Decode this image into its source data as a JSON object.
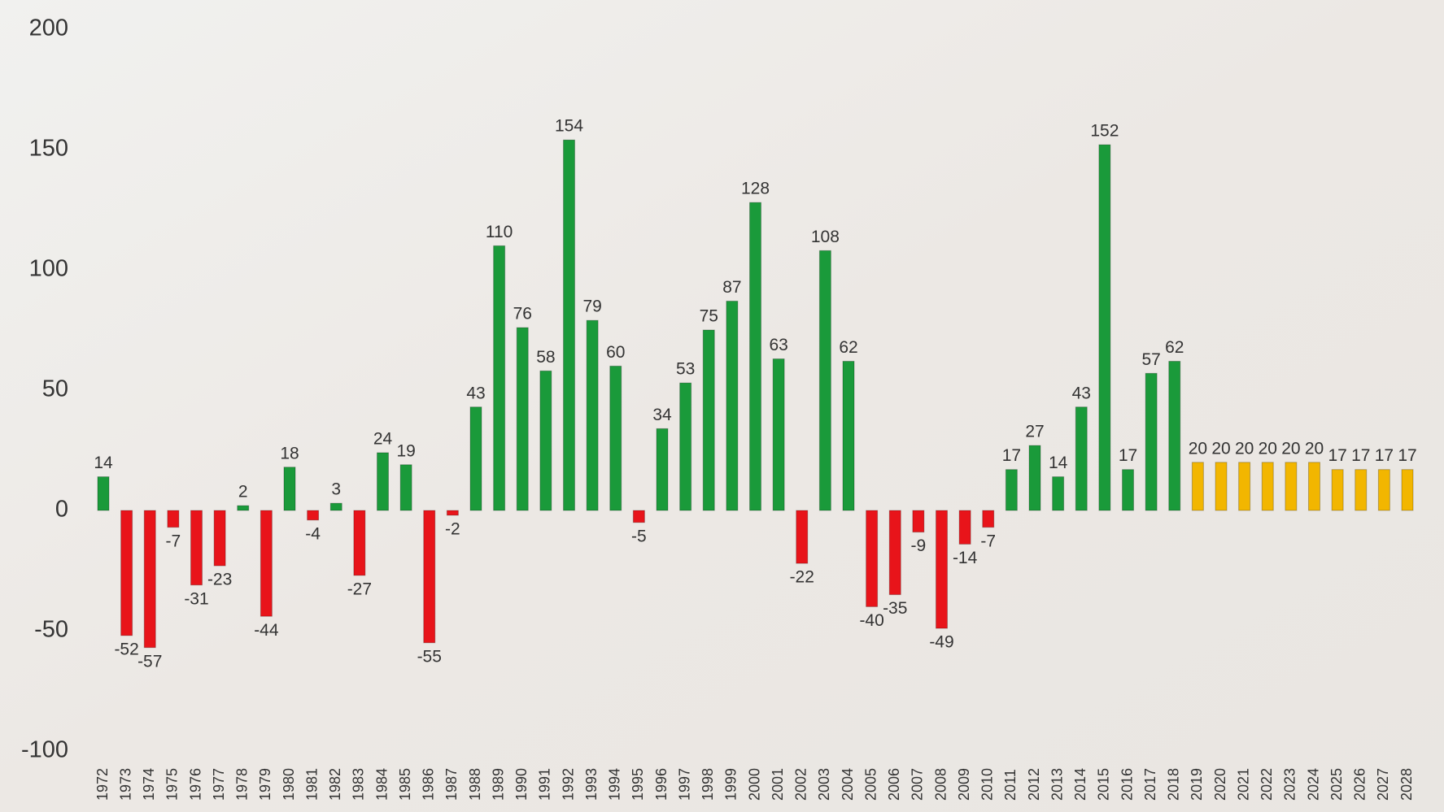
{
  "chart_data": {
    "type": "bar",
    "categories": [
      "1972",
      "1973",
      "1974",
      "1975",
      "1976",
      "1977",
      "1978",
      "1979",
      "1980",
      "1981",
      "1982",
      "1983",
      "1984",
      "1985",
      "1986",
      "1987",
      "1988",
      "1989",
      "1990",
      "1991",
      "1992",
      "1993",
      "1994",
      "1995",
      "1996",
      "1997",
      "1998",
      "1999",
      "2000",
      "2001",
      "2002",
      "2003",
      "2004",
      "2005",
      "2006",
      "2007",
      "2008",
      "2009",
      "2010",
      "2011",
      "2012",
      "2013",
      "2014",
      "2015",
      "2016",
      "2017",
      "2018",
      "2019",
      "2020",
      "2021",
      "2022",
      "2023",
      "2024",
      "2025",
      "2026",
      "2027",
      "2028"
    ],
    "values": [
      14,
      -52,
      -57,
      -7,
      -31,
      -23,
      2,
      -44,
      18,
      -4,
      3,
      -27,
      24,
      19,
      -55,
      -2,
      43,
      110,
      76,
      58,
      154,
      79,
      60,
      -5,
      34,
      53,
      75,
      87,
      128,
      63,
      -22,
      108,
      62,
      -40,
      -35,
      -9,
      -49,
      -14,
      -7,
      17,
      27,
      14,
      43,
      152,
      17,
      57,
      62,
      20,
      20,
      20,
      20,
      20,
      20,
      17,
      17,
      17,
      17
    ],
    "colors": [
      "#1a9a3a",
      "#e8141a",
      "#e8141a",
      "#e8141a",
      "#e8141a",
      "#e8141a",
      "#1a9a3a",
      "#e8141a",
      "#1a9a3a",
      "#e8141a",
      "#1a9a3a",
      "#e8141a",
      "#1a9a3a",
      "#1a9a3a",
      "#e8141a",
      "#e8141a",
      "#1a9a3a",
      "#1a9a3a",
      "#1a9a3a",
      "#1a9a3a",
      "#1a9a3a",
      "#1a9a3a",
      "#1a9a3a",
      "#e8141a",
      "#1a9a3a",
      "#1a9a3a",
      "#1a9a3a",
      "#1a9a3a",
      "#1a9a3a",
      "#1a9a3a",
      "#e8141a",
      "#1a9a3a",
      "#1a9a3a",
      "#e8141a",
      "#e8141a",
      "#e8141a",
      "#e8141a",
      "#e8141a",
      "#e8141a",
      "#1a9a3a",
      "#1a9a3a",
      "#1a9a3a",
      "#1a9a3a",
      "#1a9a3a",
      "#1a9a3a",
      "#1a9a3a",
      "#1a9a3a",
      "#f2b600",
      "#f2b600",
      "#f2b600",
      "#f2b600",
      "#f2b600",
      "#f2b600",
      "#f2b600",
      "#f2b600",
      "#f2b600",
      "#f2b600"
    ],
    "ylim": [
      -100,
      200
    ],
    "yticks": [
      -100,
      -50,
      0,
      50,
      100,
      150,
      200
    ],
    "grid": false
  }
}
